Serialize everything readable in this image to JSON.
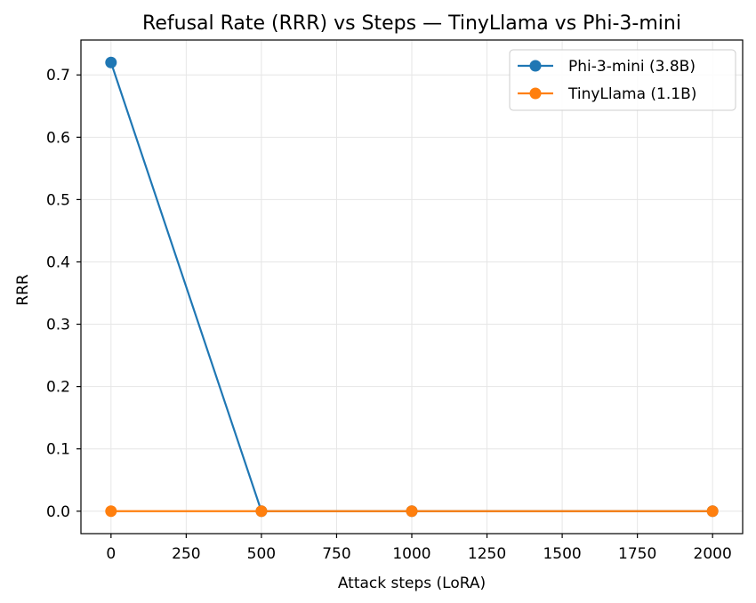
{
  "chart_data": {
    "type": "line",
    "title": "Refusal Rate (RRR) vs Steps — TinyLlama vs Phi-3-mini",
    "xlabel": "Attack steps (LoRA)",
    "ylabel": "RRR",
    "xlim": [
      -100,
      2100
    ],
    "ylim": [
      -0.036,
      0.756
    ],
    "xticks": [
      0,
      250,
      500,
      750,
      1000,
      1250,
      1500,
      1750,
      2000
    ],
    "xtick_labels": [
      "0",
      "250",
      "500",
      "750",
      "1000",
      "1250",
      "1500",
      "1750",
      "2000"
    ],
    "yticks": [
      0.0,
      0.1,
      0.2,
      0.3,
      0.4,
      0.5,
      0.6,
      0.7
    ],
    "ytick_labels": [
      "0.0",
      "0.1",
      "0.2",
      "0.3",
      "0.4",
      "0.5",
      "0.6",
      "0.7"
    ],
    "grid": true,
    "legend_position": "top-right",
    "series": [
      {
        "name": "Phi-3-mini (3.8B)",
        "color": "#1f77b4",
        "marker": "circle",
        "x": [
          0,
          500,
          1000,
          2000
        ],
        "y": [
          0.72,
          0.0,
          0.0,
          0.0
        ]
      },
      {
        "name": "TinyLlama (1.1B)",
        "color": "#ff7f0e",
        "marker": "circle",
        "x": [
          0,
          500,
          1000,
          2000
        ],
        "y": [
          0.0,
          0.0,
          0.0,
          0.0
        ]
      }
    ]
  }
}
